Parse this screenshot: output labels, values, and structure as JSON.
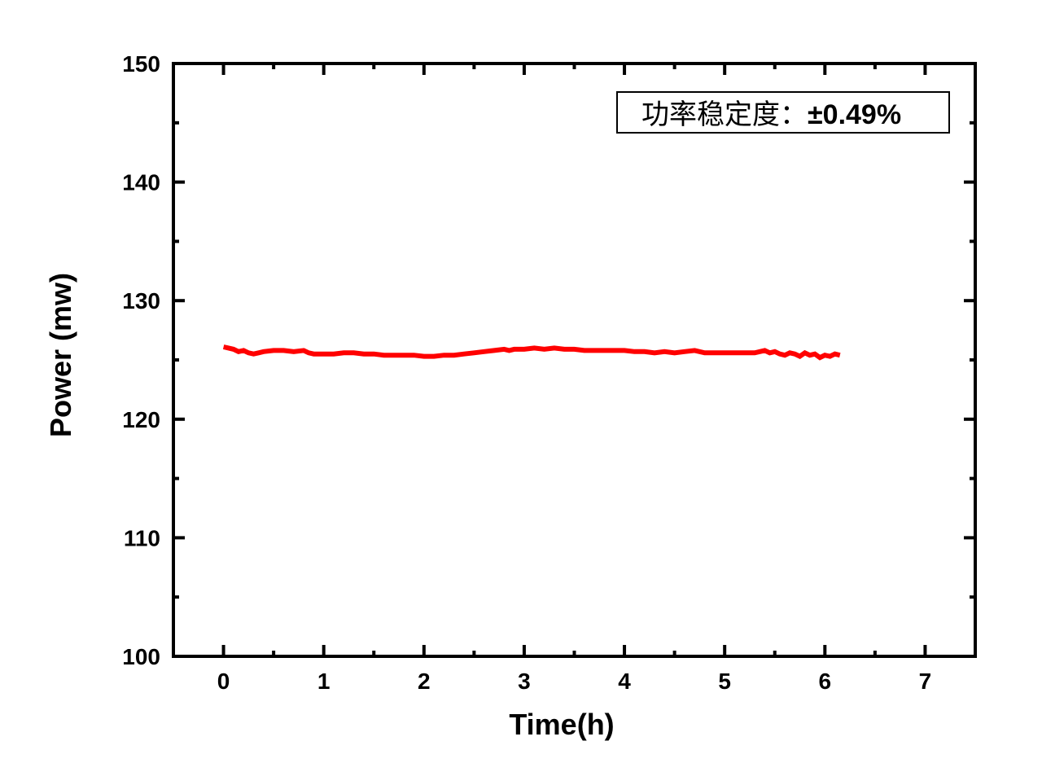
{
  "chart_data": {
    "type": "line",
    "xlabel": "Time(h)",
    "ylabel": "Power (mw)",
    "xlim": [
      -0.5,
      7.5
    ],
    "ylim": [
      100,
      150
    ],
    "x_ticks": [
      0,
      1,
      2,
      3,
      4,
      5,
      6,
      7
    ],
    "x_tick_labels": [
      "0",
      "1",
      "2",
      "3",
      "4",
      "5",
      "6",
      "7"
    ],
    "y_ticks": [
      100,
      110,
      120,
      130,
      140,
      150
    ],
    "y_tick_labels": [
      "100",
      "110",
      "120",
      "130",
      "140",
      "150"
    ],
    "grid": false,
    "annotation": {
      "label": "功率稳定度：",
      "value": "±0.49%",
      "placement": "top-right"
    },
    "series": [
      {
        "color": "#ff0000",
        "x": [
          0.0,
          0.05,
          0.1,
          0.15,
          0.2,
          0.25,
          0.3,
          0.35,
          0.4,
          0.5,
          0.6,
          0.7,
          0.8,
          0.85,
          0.9,
          1.0,
          1.1,
          1.2,
          1.3,
          1.4,
          1.5,
          1.6,
          1.7,
          1.8,
          1.9,
          2.0,
          2.1,
          2.2,
          2.3,
          2.4,
          2.5,
          2.6,
          2.7,
          2.8,
          2.85,
          2.9,
          3.0,
          3.1,
          3.2,
          3.3,
          3.4,
          3.5,
          3.6,
          3.7,
          3.8,
          3.9,
          4.0,
          4.1,
          4.2,
          4.3,
          4.4,
          4.5,
          4.6,
          4.7,
          4.8,
          4.9,
          5.0,
          5.1,
          5.2,
          5.3,
          5.4,
          5.45,
          5.5,
          5.55,
          5.6,
          5.65,
          5.7,
          5.75,
          5.8,
          5.85,
          5.9,
          5.95,
          6.0,
          6.05,
          6.1,
          6.15
        ],
        "y": [
          126.1,
          126.0,
          125.9,
          125.7,
          125.8,
          125.6,
          125.5,
          125.6,
          125.7,
          125.8,
          125.8,
          125.7,
          125.8,
          125.6,
          125.5,
          125.5,
          125.5,
          125.6,
          125.6,
          125.5,
          125.5,
          125.4,
          125.4,
          125.4,
          125.4,
          125.3,
          125.3,
          125.4,
          125.4,
          125.5,
          125.6,
          125.7,
          125.8,
          125.9,
          125.8,
          125.9,
          125.9,
          126.0,
          125.9,
          126.0,
          125.9,
          125.9,
          125.8,
          125.8,
          125.8,
          125.8,
          125.8,
          125.7,
          125.7,
          125.6,
          125.7,
          125.6,
          125.7,
          125.8,
          125.6,
          125.6,
          125.6,
          125.6,
          125.6,
          125.6,
          125.8,
          125.6,
          125.7,
          125.5,
          125.4,
          125.6,
          125.5,
          125.3,
          125.6,
          125.4,
          125.5,
          125.2,
          125.4,
          125.3,
          125.5,
          125.4
        ]
      }
    ]
  }
}
